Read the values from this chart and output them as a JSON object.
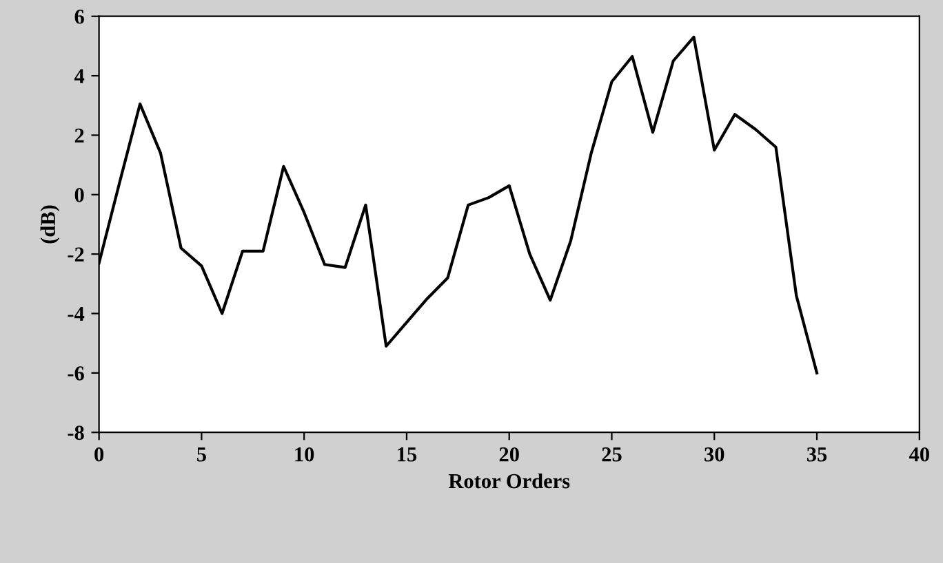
{
  "chart_data": {
    "type": "line",
    "xlabel": "Rotor Orders",
    "ylabel": "(dB)",
    "x": [
      0,
      1,
      2,
      3,
      4,
      5,
      6,
      7,
      8,
      9,
      10,
      11,
      12,
      13,
      14,
      15,
      16,
      17,
      18,
      19,
      20,
      21,
      22,
      23,
      24,
      25,
      26,
      27,
      28,
      29,
      30,
      31,
      32,
      33,
      34,
      35
    ],
    "series": [
      {
        "color": "#000000",
        "values": [
          -2.3,
          0.4,
          3.05,
          1.4,
          -1.8,
          -2.4,
          -4.0,
          -1.9,
          -1.9,
          0.95,
          -0.6,
          -2.35,
          -2.45,
          -0.35,
          -5.1,
          -4.3,
          -3.5,
          -2.8,
          -0.35,
          -0.1,
          0.3,
          -2.0,
          -3.55,
          -1.55,
          1.4,
          3.8,
          4.65,
          2.1,
          4.5,
          5.3,
          1.5,
          2.7,
          2.2,
          1.6,
          -3.4,
          -6.0
        ]
      }
    ],
    "xlim": [
      0,
      40
    ],
    "xticks": [
      0,
      5,
      10,
      15,
      20,
      25,
      30,
      35,
      40
    ],
    "ylim": [
      -8,
      6
    ],
    "yticks": [
      -8,
      -6,
      -4,
      -2,
      0,
      2,
      4,
      6
    ],
    "grid": false,
    "legend": false,
    "marker": "none",
    "line_style": "solid"
  }
}
